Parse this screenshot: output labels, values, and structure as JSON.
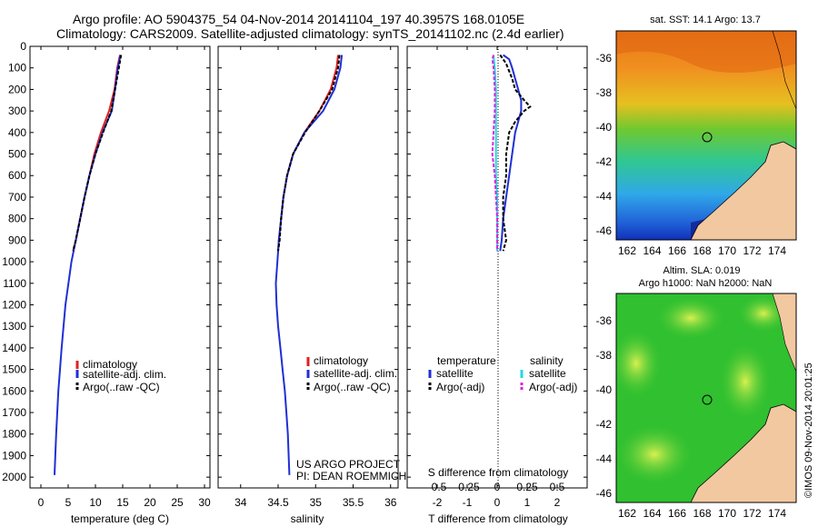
{
  "header": {
    "line1": "Argo profile: AO 5904375_54 04-Nov-2014 20141104_197 40.3957S 168.0105E",
    "line2": "Climatology: CARS2009. Satellite-adjusted climatology: synTS_20141102.nc (2.4d earlier)"
  },
  "colors": {
    "climatology": "#e02020",
    "satellite": "#1f2fd6",
    "argo": "#000000",
    "sat_salinity": "#22d8e0",
    "argo_salinity": "#e020e0",
    "land": "#f2c8a0"
  },
  "chart_data": [
    {
      "type": "line",
      "id": "temperature",
      "xlabel": "temperature (deg C)",
      "xlim": [
        -2,
        31
      ],
      "xticks": [
        0,
        5,
        10,
        15,
        20,
        25,
        30
      ],
      "ylim": [
        0,
        2050
      ],
      "yticks": [
        0,
        100,
        200,
        300,
        400,
        500,
        600,
        700,
        800,
        900,
        1000,
        1100,
        1200,
        1300,
        1400,
        1500,
        1600,
        1700,
        1800,
        1900,
        2000
      ],
      "legend": [
        "climatology",
        "satellite-adj. clim.",
        "Argo(..raw -QC)"
      ],
      "series": [
        {
          "name": "climatology",
          "color": "#e02020",
          "depth": [
            40,
            100,
            200,
            300,
            400,
            500,
            600,
            700,
            800,
            900,
            950
          ],
          "values": [
            14.5,
            14.0,
            13.5,
            12.5,
            11.0,
            9.8,
            8.9,
            8.0,
            7.2,
            6.4,
            5.9
          ]
        },
        {
          "name": "satellite-adj. clim.",
          "color": "#1f2fd6",
          "depth": [
            40,
            100,
            200,
            300,
            400,
            500,
            600,
            700,
            800,
            900,
            1000,
            1200,
            1400,
            1600,
            1800,
            1990
          ],
          "values": [
            14.6,
            14.1,
            13.6,
            13.0,
            11.3,
            10.0,
            8.9,
            8.0,
            7.2,
            6.4,
            5.6,
            4.5,
            3.8,
            3.2,
            2.8,
            2.5
          ]
        },
        {
          "name": "Argo(..raw -QC)",
          "color": "#000000",
          "depth": [
            40,
            100,
            200,
            300,
            400,
            500,
            600,
            700,
            800,
            900,
            950
          ],
          "values": [
            14.7,
            14.3,
            13.6,
            12.9,
            11.4,
            10.0,
            8.9,
            8.0,
            7.2,
            6.4,
            5.9
          ]
        }
      ]
    },
    {
      "type": "line",
      "id": "salinity",
      "xlabel": "salinity",
      "xlim": [
        33.7,
        36.1
      ],
      "xticks": [
        34,
        34.5,
        35,
        35.5,
        36
      ],
      "ylim": [
        0,
        2050
      ],
      "legend": [
        "climatology",
        "satellite-adj. clim.",
        "Argo(..raw -QC)"
      ],
      "series": [
        {
          "name": "climatology",
          "color": "#e02020",
          "depth": [
            40,
            100,
            200,
            300,
            400,
            500,
            600,
            700,
            800,
            900,
            950
          ],
          "values": [
            35.3,
            35.28,
            35.2,
            35.05,
            34.85,
            34.7,
            34.62,
            34.57,
            34.54,
            34.51,
            34.5
          ]
        },
        {
          "name": "satellite-adj. clim.",
          "color": "#1f2fd6",
          "depth": [
            40,
            100,
            200,
            300,
            400,
            500,
            600,
            700,
            800,
            900,
            1000,
            1100,
            1200,
            1300,
            1400,
            1500,
            1600,
            1700,
            1800,
            1990
          ],
          "values": [
            35.35,
            35.33,
            35.25,
            35.1,
            34.85,
            34.7,
            34.62,
            34.57,
            34.54,
            34.51,
            34.49,
            34.47,
            34.48,
            34.5,
            34.53,
            34.56,
            34.59,
            34.61,
            34.63,
            34.65
          ]
        },
        {
          "name": "Argo(..raw -QC)",
          "color": "#000000",
          "depth": [
            40,
            100,
            200,
            300,
            400,
            500,
            600,
            700,
            800,
            900,
            950
          ],
          "values": [
            35.32,
            35.3,
            35.22,
            35.05,
            34.86,
            34.7,
            34.62,
            34.57,
            34.54,
            34.52,
            34.5
          ]
        }
      ],
      "annotations": [
        "US ARGO PROJECT",
        "PI: DEAN ROEMMICH"
      ]
    },
    {
      "type": "line",
      "id": "difference",
      "xlabel": "T difference from climatology",
      "xlabel_top": "S difference from climatology",
      "xlim": [
        -3,
        3
      ],
      "xticks": [
        -2,
        -1,
        0,
        1,
        2
      ],
      "top_tick_labels": [
        "-0.5",
        "-0.25",
        "0",
        "0.25",
        "0.5"
      ],
      "legend_headers": [
        "temperature",
        "salinity"
      ],
      "legend": [
        "satellite",
        "Argo(-adj)",
        "satellite",
        "Argo(-adj)"
      ],
      "series": [
        {
          "name": "T satellite",
          "color": "#1f2fd6",
          "depth": [
            40,
            60,
            100,
            150,
            200,
            250,
            300,
            350,
            400,
            500,
            600,
            700,
            800,
            900,
            950
          ],
          "values": [
            0.2,
            0.4,
            0.5,
            0.6,
            0.7,
            0.8,
            0.8,
            0.7,
            0.6,
            0.5,
            0.4,
            0.3,
            0.2,
            0.15,
            0.1
          ]
        },
        {
          "name": "T Argo(-adj)",
          "color": "#000000",
          "depth": [
            40,
            80,
            150,
            200,
            250,
            280,
            300,
            350,
            400,
            500,
            600,
            700,
            800,
            900,
            950
          ],
          "values": [
            0.1,
            0.3,
            0.5,
            0.6,
            0.9,
            1.1,
            0.9,
            0.6,
            0.4,
            0.3,
            0.3,
            0.2,
            0.2,
            0.3,
            0.2
          ]
        },
        {
          "name": "S satellite",
          "color": "#22d8e0",
          "depth": [
            40,
            100,
            200,
            300,
            400,
            500,
            600,
            700,
            800,
            900,
            950
          ],
          "values": [
            -0.03,
            -0.02,
            -0.01,
            -0.01,
            -0.01,
            -0.01,
            -0.01,
            0,
            0,
            0,
            0
          ]
        },
        {
          "name": "S Argo(-adj)",
          "color": "#e020e0",
          "depth": [
            40,
            60,
            100,
            200,
            300,
            400,
            500,
            600,
            700,
            800,
            900,
            950
          ],
          "values": [
            -0.03,
            -0.04,
            -0.03,
            -0.02,
            -0.02,
            -0.03,
            -0.04,
            -0.02,
            -0.01,
            0,
            0,
            0
          ]
        }
      ]
    }
  ],
  "maps": {
    "sst": {
      "title": "sat. SST: 14.1  Argo: 13.7"
    },
    "sla": {
      "title1": "Altim. SLA: 0.019",
      "title2": "Argo h1000: NaN  h2000: NaN"
    },
    "lat_ticks": [
      "-36",
      "-38",
      "-40",
      "-42",
      "-44",
      "-46"
    ],
    "lon_ticks": [
      "162",
      "164",
      "166",
      "168",
      "170",
      "172",
      "174"
    ]
  },
  "watermark": "©IMOS 09-Nov-2014 20:01:25"
}
